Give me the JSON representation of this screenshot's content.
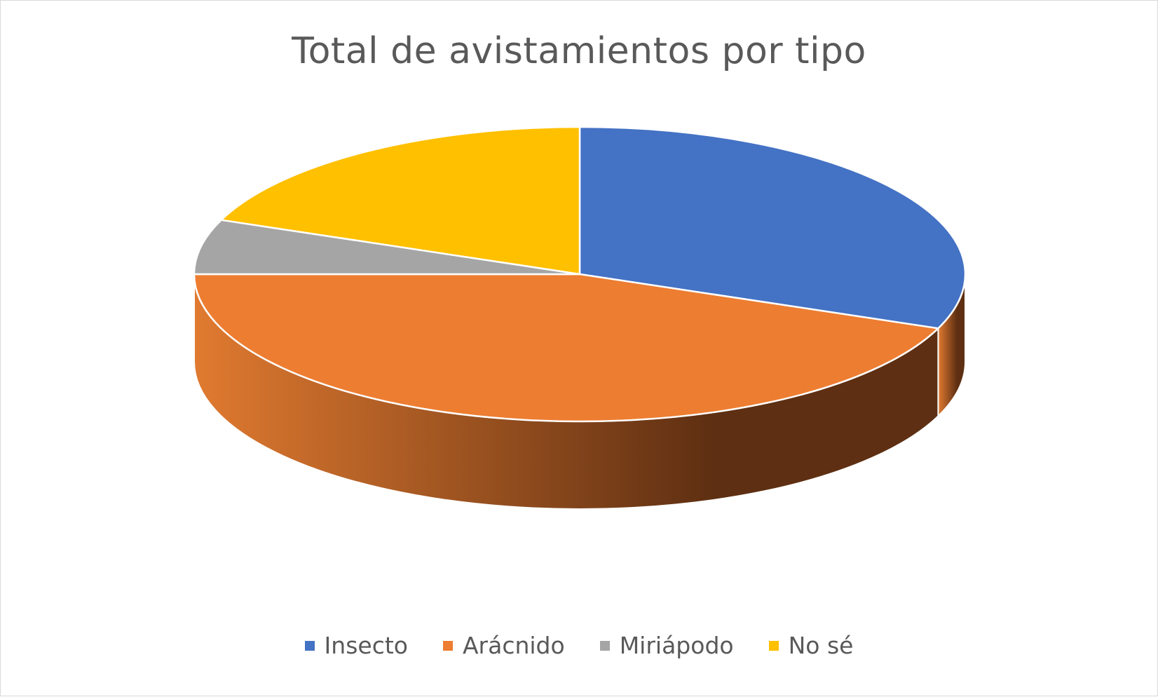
{
  "chart_data": {
    "type": "pie",
    "style": "3d",
    "title": "Total de avistamientos por tipo",
    "categories": [
      "Insecto",
      "Arácnido",
      "Miriápodo",
      "No sé"
    ],
    "values": [
      31,
      44,
      6,
      19
    ],
    "colors": [
      "#4472C4",
      "#ED7D31",
      "#A5A5A5",
      "#FFC000"
    ],
    "legend": "bottom"
  }
}
